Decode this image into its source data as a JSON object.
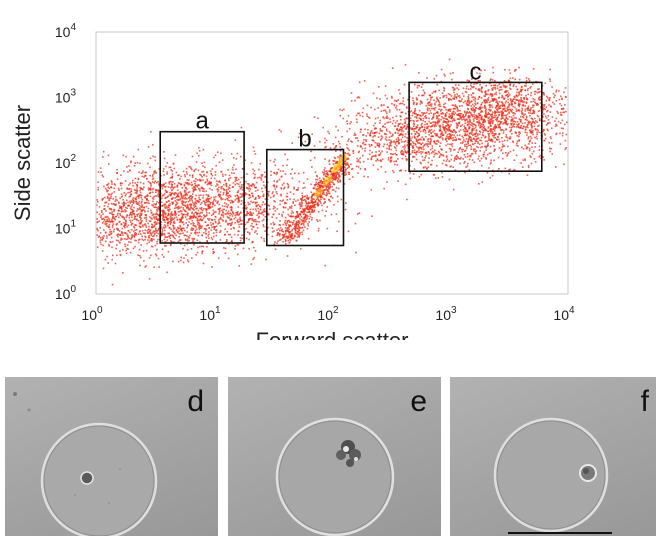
{
  "chart_data": {
    "type": "scatter",
    "xlabel": "Forward scatter",
    "ylabel": "Side scatter",
    "xscale": "log",
    "yscale": "log",
    "xlim": [
      1,
      10000
    ],
    "ylim": [
      1,
      10000
    ],
    "x_ticks": [
      {
        "base": "10",
        "exp": "0"
      },
      {
        "base": "10",
        "exp": "1"
      },
      {
        "base": "10",
        "exp": "2"
      },
      {
        "base": "10",
        "exp": "3"
      },
      {
        "base": "10",
        "exp": "4"
      }
    ],
    "y_ticks": [
      {
        "base": "10",
        "exp": "0"
      },
      {
        "base": "10",
        "exp": "1"
      },
      {
        "base": "10",
        "exp": "2"
      },
      {
        "base": "10",
        "exp": "3"
      },
      {
        "base": "10",
        "exp": "4"
      }
    ],
    "grid": false,
    "point_color": "#e8301c",
    "density_color": "#ffd21c",
    "clusters": [
      {
        "center": [
          5,
          22
        ],
        "spread": [
          0.55,
          0.35
        ],
        "count": 1500
      },
      {
        "center": [
          2,
          12
        ],
        "spread": [
          0.4,
          0.25
        ],
        "count": 700
      },
      {
        "center": [
          12,
          30
        ],
        "spread": [
          0.4,
          0.3
        ],
        "count": 500
      },
      {
        "center": [
          1500,
          400
        ],
        "spread": [
          0.45,
          0.3
        ],
        "count": 1700
      },
      {
        "center": [
          400,
          200
        ],
        "spread": [
          0.35,
          0.25
        ],
        "count": 500
      },
      {
        "center": [
          3000,
          900
        ],
        "spread": [
          0.25,
          0.2
        ],
        "count": 400
      }
    ],
    "diagonal_band": {
      "from": [
        40,
        7
      ],
      "to": [
        130,
        130
      ],
      "count": 700
    },
    "gates": [
      {
        "label": "a",
        "x": [
          3.5,
          18
        ],
        "y": [
          6,
          300
        ]
      },
      {
        "label": "b",
        "x": [
          28,
          125
        ],
        "y": [
          5.5,
          160
        ]
      },
      {
        "label": "c",
        "x": [
          450,
          6000
        ],
        "y": [
          75,
          1700
        ]
      }
    ]
  },
  "panels": [
    {
      "label": "d"
    },
    {
      "label": "e"
    },
    {
      "label": "f"
    }
  ]
}
